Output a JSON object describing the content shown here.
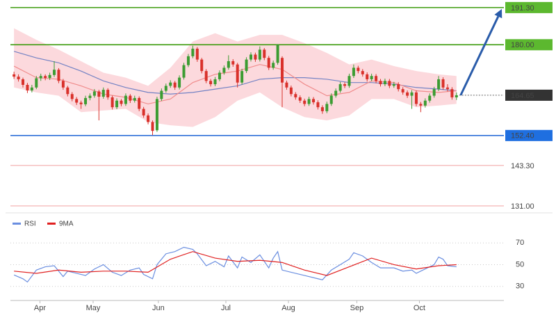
{
  "chart_data": [
    {
      "type": "candlestick",
      "xlim": [
        -0.8,
        109.6
      ],
      "ylim": [
        129.1,
        193.6
      ],
      "xticks": [
        {
          "value": 5.8,
          "label": "Apr"
        },
        {
          "value": 17.7,
          "label": "May"
        },
        {
          "value": 32.3,
          "label": "Jun"
        },
        {
          "value": 47.4,
          "label": "Jul"
        },
        {
          "value": 61.4,
          "label": "Aug"
        },
        {
          "value": 76.7,
          "label": "Sep"
        },
        {
          "value": 90.7,
          "label": "Oct"
        }
      ],
      "up_color": "#3c9c32",
      "down_color": "#d9312b",
      "ohlc": [
        [
          171.0,
          171.8,
          169.6,
          170.3
        ],
        [
          170.3,
          171.0,
          168.8,
          169.5
        ],
        [
          169.5,
          170.0,
          167.0,
          167.8
        ],
        [
          167.8,
          168.4,
          165.3,
          166.1
        ],
        [
          166.1,
          167.8,
          165.5,
          167.0
        ],
        [
          167.0,
          170.5,
          166.5,
          169.8
        ],
        [
          169.8,
          171.2,
          169.0,
          170.5
        ],
        [
          170.5,
          171.0,
          169.2,
          169.9
        ],
        [
          169.9,
          171.5,
          169.3,
          170.8
        ],
        [
          170.8,
          175.0,
          170.2,
          172.4
        ],
        [
          172.4,
          172.9,
          168.3,
          169.0
        ],
        [
          169.0,
          169.6,
          166.3,
          167.0
        ],
        [
          167.0,
          167.5,
          164.3,
          165.0
        ],
        [
          165.0,
          165.6,
          162.8,
          163.5
        ],
        [
          163.5,
          164.1,
          161.7,
          162.4
        ],
        [
          162.4,
          163.0,
          160.5,
          161.9
        ],
        [
          161.9,
          164.5,
          161.3,
          163.8
        ],
        [
          163.8,
          165.2,
          163.1,
          164.5
        ],
        [
          164.5,
          166.5,
          163.9,
          165.8
        ],
        [
          165.8,
          166.3,
          157.0,
          164.2
        ],
        [
          164.2,
          167.0,
          163.6,
          166.3
        ],
        [
          166.3,
          166.8,
          163.3,
          164.0
        ],
        [
          164.0,
          164.5,
          160.3,
          161.0
        ],
        [
          161.0,
          163.7,
          160.4,
          163.0
        ],
        [
          163.0,
          163.5,
          161.3,
          162.0
        ],
        [
          162.0,
          165.2,
          161.4,
          164.5
        ],
        [
          164.5,
          165.0,
          162.3,
          163.0
        ],
        [
          163.0,
          164.5,
          162.4,
          163.8
        ],
        [
          163.8,
          164.3,
          159.8,
          160.5
        ],
        [
          160.5,
          161.1,
          157.8,
          158.5
        ],
        [
          158.5,
          159.1,
          155.8,
          156.5
        ],
        [
          156.5,
          157.0,
          152.5,
          153.8
        ],
        [
          154.0,
          164.2,
          153.5,
          163.5
        ],
        [
          163.5,
          166.7,
          162.9,
          166.0
        ],
        [
          166.0,
          168.2,
          165.4,
          167.5
        ],
        [
          167.5,
          169.2,
          166.9,
          168.5
        ],
        [
          168.5,
          169.0,
          166.3,
          167.0
        ],
        [
          167.0,
          170.7,
          166.4,
          170.0
        ],
        [
          170.0,
          174.5,
          169.4,
          173.8
        ],
        [
          173.8,
          177.2,
          173.2,
          176.5
        ],
        [
          176.5,
          179.7,
          175.9,
          178.8
        ],
        [
          178.8,
          179.3,
          174.8,
          175.5
        ],
        [
          175.5,
          176.0,
          171.3,
          172.0
        ],
        [
          172.0,
          172.6,
          168.3,
          169.0
        ],
        [
          169.0,
          169.6,
          167.3,
          168.0
        ],
        [
          168.0,
          170.2,
          167.4,
          169.5
        ],
        [
          169.5,
          172.2,
          168.9,
          171.5
        ],
        [
          171.5,
          173.7,
          170.9,
          173.0
        ],
        [
          173.0,
          176.8,
          172.4,
          175.0
        ],
        [
          175.0,
          175.6,
          173.3,
          174.0
        ],
        [
          174.0,
          174.5,
          167.0,
          168.5
        ],
        [
          168.5,
          172.7,
          167.9,
          172.0
        ],
        [
          172.0,
          176.2,
          171.4,
          175.5
        ],
        [
          175.5,
          177.7,
          174.9,
          177.0
        ],
        [
          177.0,
          177.6,
          174.8,
          175.5
        ],
        [
          175.5,
          179.5,
          174.9,
          178.5
        ],
        [
          178.5,
          179.0,
          175.3,
          176.0
        ],
        [
          176.0,
          176.6,
          172.3,
          173.0
        ],
        [
          173.0,
          175.2,
          172.4,
          174.5
        ],
        [
          174.5,
          180.2,
          173.9,
          180.0
        ],
        [
          176.0,
          176.5,
          161.0,
          168.5
        ],
        [
          168.5,
          169.1,
          166.3,
          167.0
        ],
        [
          167.0,
          167.6,
          164.3,
          165.0
        ],
        [
          165.0,
          165.6,
          163.3,
          164.0
        ],
        [
          164.0,
          164.6,
          162.3,
          163.0
        ],
        [
          163.0,
          163.6,
          161.3,
          162.0
        ],
        [
          162.0,
          164.2,
          161.4,
          163.5
        ],
        [
          163.5,
          164.1,
          161.8,
          162.5
        ],
        [
          162.5,
          163.1,
          160.3,
          161.0
        ],
        [
          161.0,
          161.6,
          159.0,
          159.8
        ],
        [
          159.8,
          162.7,
          159.2,
          162.0
        ],
        [
          162.0,
          165.2,
          161.4,
          164.5
        ],
        [
          164.5,
          166.7,
          163.9,
          166.0
        ],
        [
          166.0,
          168.7,
          165.4,
          168.0
        ],
        [
          168.0,
          168.6,
          166.8,
          167.5
        ],
        [
          167.5,
          171.2,
          166.9,
          170.5
        ],
        [
          170.5,
          174.0,
          169.9,
          173.0
        ],
        [
          173.0,
          173.6,
          171.3,
          172.0
        ],
        [
          172.0,
          172.6,
          170.3,
          171.0
        ],
        [
          171.0,
          171.6,
          168.8,
          169.5
        ],
        [
          169.5,
          171.2,
          168.9,
          170.5
        ],
        [
          170.5,
          171.1,
          168.3,
          169.0
        ],
        [
          169.0,
          169.6,
          167.3,
          168.0
        ],
        [
          168.0,
          169.7,
          167.4,
          169.0
        ],
        [
          169.0,
          169.6,
          166.8,
          167.5
        ],
        [
          167.5,
          168.7,
          166.9,
          168.0
        ],
        [
          168.0,
          168.6,
          165.8,
          166.5
        ],
        [
          166.5,
          167.1,
          164.8,
          165.5
        ],
        [
          165.5,
          166.1,
          163.8,
          164.5
        ],
        [
          164.5,
          166.2,
          160.5,
          165.5
        ],
        [
          165.5,
          166.1,
          161.3,
          162.0
        ],
        [
          162.0,
          162.6,
          159.5,
          161.5
        ],
        [
          161.5,
          163.7,
          160.9,
          163.0
        ],
        [
          163.0,
          165.2,
          162.4,
          164.5
        ],
        [
          164.5,
          167.2,
          163.9,
          166.5
        ],
        [
          166.5,
          170.5,
          165.9,
          169.5
        ],
        [
          169.5,
          170.1,
          166.3,
          167.0
        ],
        [
          167.0,
          168.0,
          165.8,
          166.5
        ],
        [
          166.5,
          167.1,
          163.3,
          164.0
        ],
        [
          164.0,
          165.5,
          163.2,
          164.65
        ]
      ],
      "band": {
        "color": "#fbd0d4",
        "x": [
          0,
          5,
          10,
          15,
          20,
          25,
          30,
          35,
          40,
          45,
          50,
          55,
          60,
          65,
          70,
          75,
          80,
          85,
          90,
          95,
          99
        ],
        "upper": [
          185.0,
          181.5,
          178.5,
          175.0,
          171.5,
          170.0,
          167.5,
          173.0,
          181.0,
          183.5,
          181.0,
          183.0,
          183.0,
          180.5,
          177.5,
          174.0,
          175.5,
          173.5,
          172.0,
          171.0,
          170.5
        ],
        "lower": [
          167.0,
          165.5,
          164.5,
          159.5,
          160.0,
          160.5,
          156.5,
          155.5,
          155.0,
          158.0,
          163.0,
          165.5,
          161.0,
          158.0,
          157.0,
          158.5,
          163.5,
          163.5,
          161.0,
          161.5,
          162.0
        ]
      },
      "lines": [
        {
          "color": "#7382c4",
          "x": [
            0,
            5,
            10,
            15,
            20,
            25,
            30,
            35,
            40,
            45,
            50,
            55,
            60,
            65,
            70,
            75,
            80,
            85,
            90,
            95,
            99
          ],
          "values": [
            178.0,
            176.0,
            174.5,
            172.0,
            169.0,
            167.0,
            165.5,
            165.0,
            165.5,
            166.5,
            167.5,
            169.5,
            170.0,
            170.0,
            169.5,
            168.5,
            168.5,
            168.0,
            167.0,
            166.5,
            166.0
          ]
        },
        {
          "color": "#f08c8c",
          "x": [
            0,
            5,
            10,
            15,
            20,
            25,
            30,
            35,
            40,
            45,
            50,
            55,
            60,
            65,
            70,
            75,
            80,
            85,
            90,
            95,
            99
          ],
          "values": [
            173.5,
            170.0,
            169.5,
            167.5,
            165.0,
            164.0,
            162.0,
            163.5,
            168.5,
            171.0,
            172.0,
            174.0,
            172.5,
            168.0,
            164.5,
            165.5,
            169.0,
            168.5,
            166.0,
            165.5,
            166.0
          ]
        }
      ],
      "levels": [
        {
          "value": 191.3,
          "label": "191.30",
          "color": "#3d9b0e",
          "label_fill": "#5cb82f",
          "label_color": "#1a3a08"
        },
        {
          "value": 180,
          "label": "180.00",
          "color": "#3d9b0e",
          "label_fill": "#5cb82f",
          "label_color": "#1a3a08"
        },
        {
          "value": 164.65,
          "label": "164.65",
          "color": "#666666",
          "label_fill": "#333333",
          "label_color": "#ffffff",
          "dash": true
        },
        {
          "value": 152.4,
          "label": "152.40",
          "color": "#2d6fd8",
          "label_fill": "#1f6fe0",
          "label_color": "#ffffff"
        },
        {
          "value": 143.3,
          "label": "143.30",
          "color": "#f2a0a0",
          "label_color": "#e03030"
        },
        {
          "value": 131,
          "label": "131.00",
          "color": "#f2a0a0",
          "label_color": "#e03030"
        }
      ],
      "arrow_color": "#2a5caa"
    },
    {
      "type": "line",
      "xlim": [
        -0.8,
        109.6
      ],
      "ylim": [
        17,
        90
      ],
      "yticks": [
        70,
        50,
        30
      ],
      "grid": true,
      "series": [
        {
          "name": "RSI",
          "color": "#6a8ee0",
          "x": [
            0,
            2,
            3,
            5,
            7,
            9,
            11,
            12,
            14,
            16,
            18,
            20,
            22,
            24,
            26,
            28,
            29,
            31,
            32,
            34,
            36,
            38,
            40,
            41,
            43,
            45,
            47,
            48,
            50,
            51,
            53,
            55,
            57,
            58,
            59,
            60,
            62,
            65,
            68,
            69,
            71,
            73,
            75,
            76,
            78,
            80,
            82,
            85,
            87,
            89,
            90,
            92,
            94,
            95,
            96,
            97,
            99
          ],
          "values": [
            40.5,
            37,
            34,
            45,
            48,
            49,
            39,
            44,
            42,
            40,
            46,
            50,
            43,
            40,
            45,
            47,
            41,
            37,
            50,
            60,
            62,
            66,
            64,
            60,
            49,
            53,
            48,
            58,
            47,
            57,
            52,
            59,
            47,
            56,
            62,
            45,
            43,
            40,
            37,
            36,
            45,
            50,
            55,
            61,
            58,
            52,
            47,
            47,
            44,
            45,
            42,
            46,
            50,
            57,
            55,
            49,
            48
          ]
        },
        {
          "name": "9MA",
          "color": "#e02020",
          "x": [
            0,
            5,
            10,
            15,
            20,
            25,
            30,
            35,
            40,
            45,
            50,
            55,
            60,
            65,
            70,
            75,
            80,
            85,
            90,
            95,
            99
          ],
          "values": [
            44,
            42,
            45,
            43,
            44,
            44,
            43,
            55,
            62,
            56,
            53,
            54,
            52,
            45,
            40,
            48,
            56,
            50,
            46,
            49,
            50
          ]
        }
      ]
    }
  ]
}
